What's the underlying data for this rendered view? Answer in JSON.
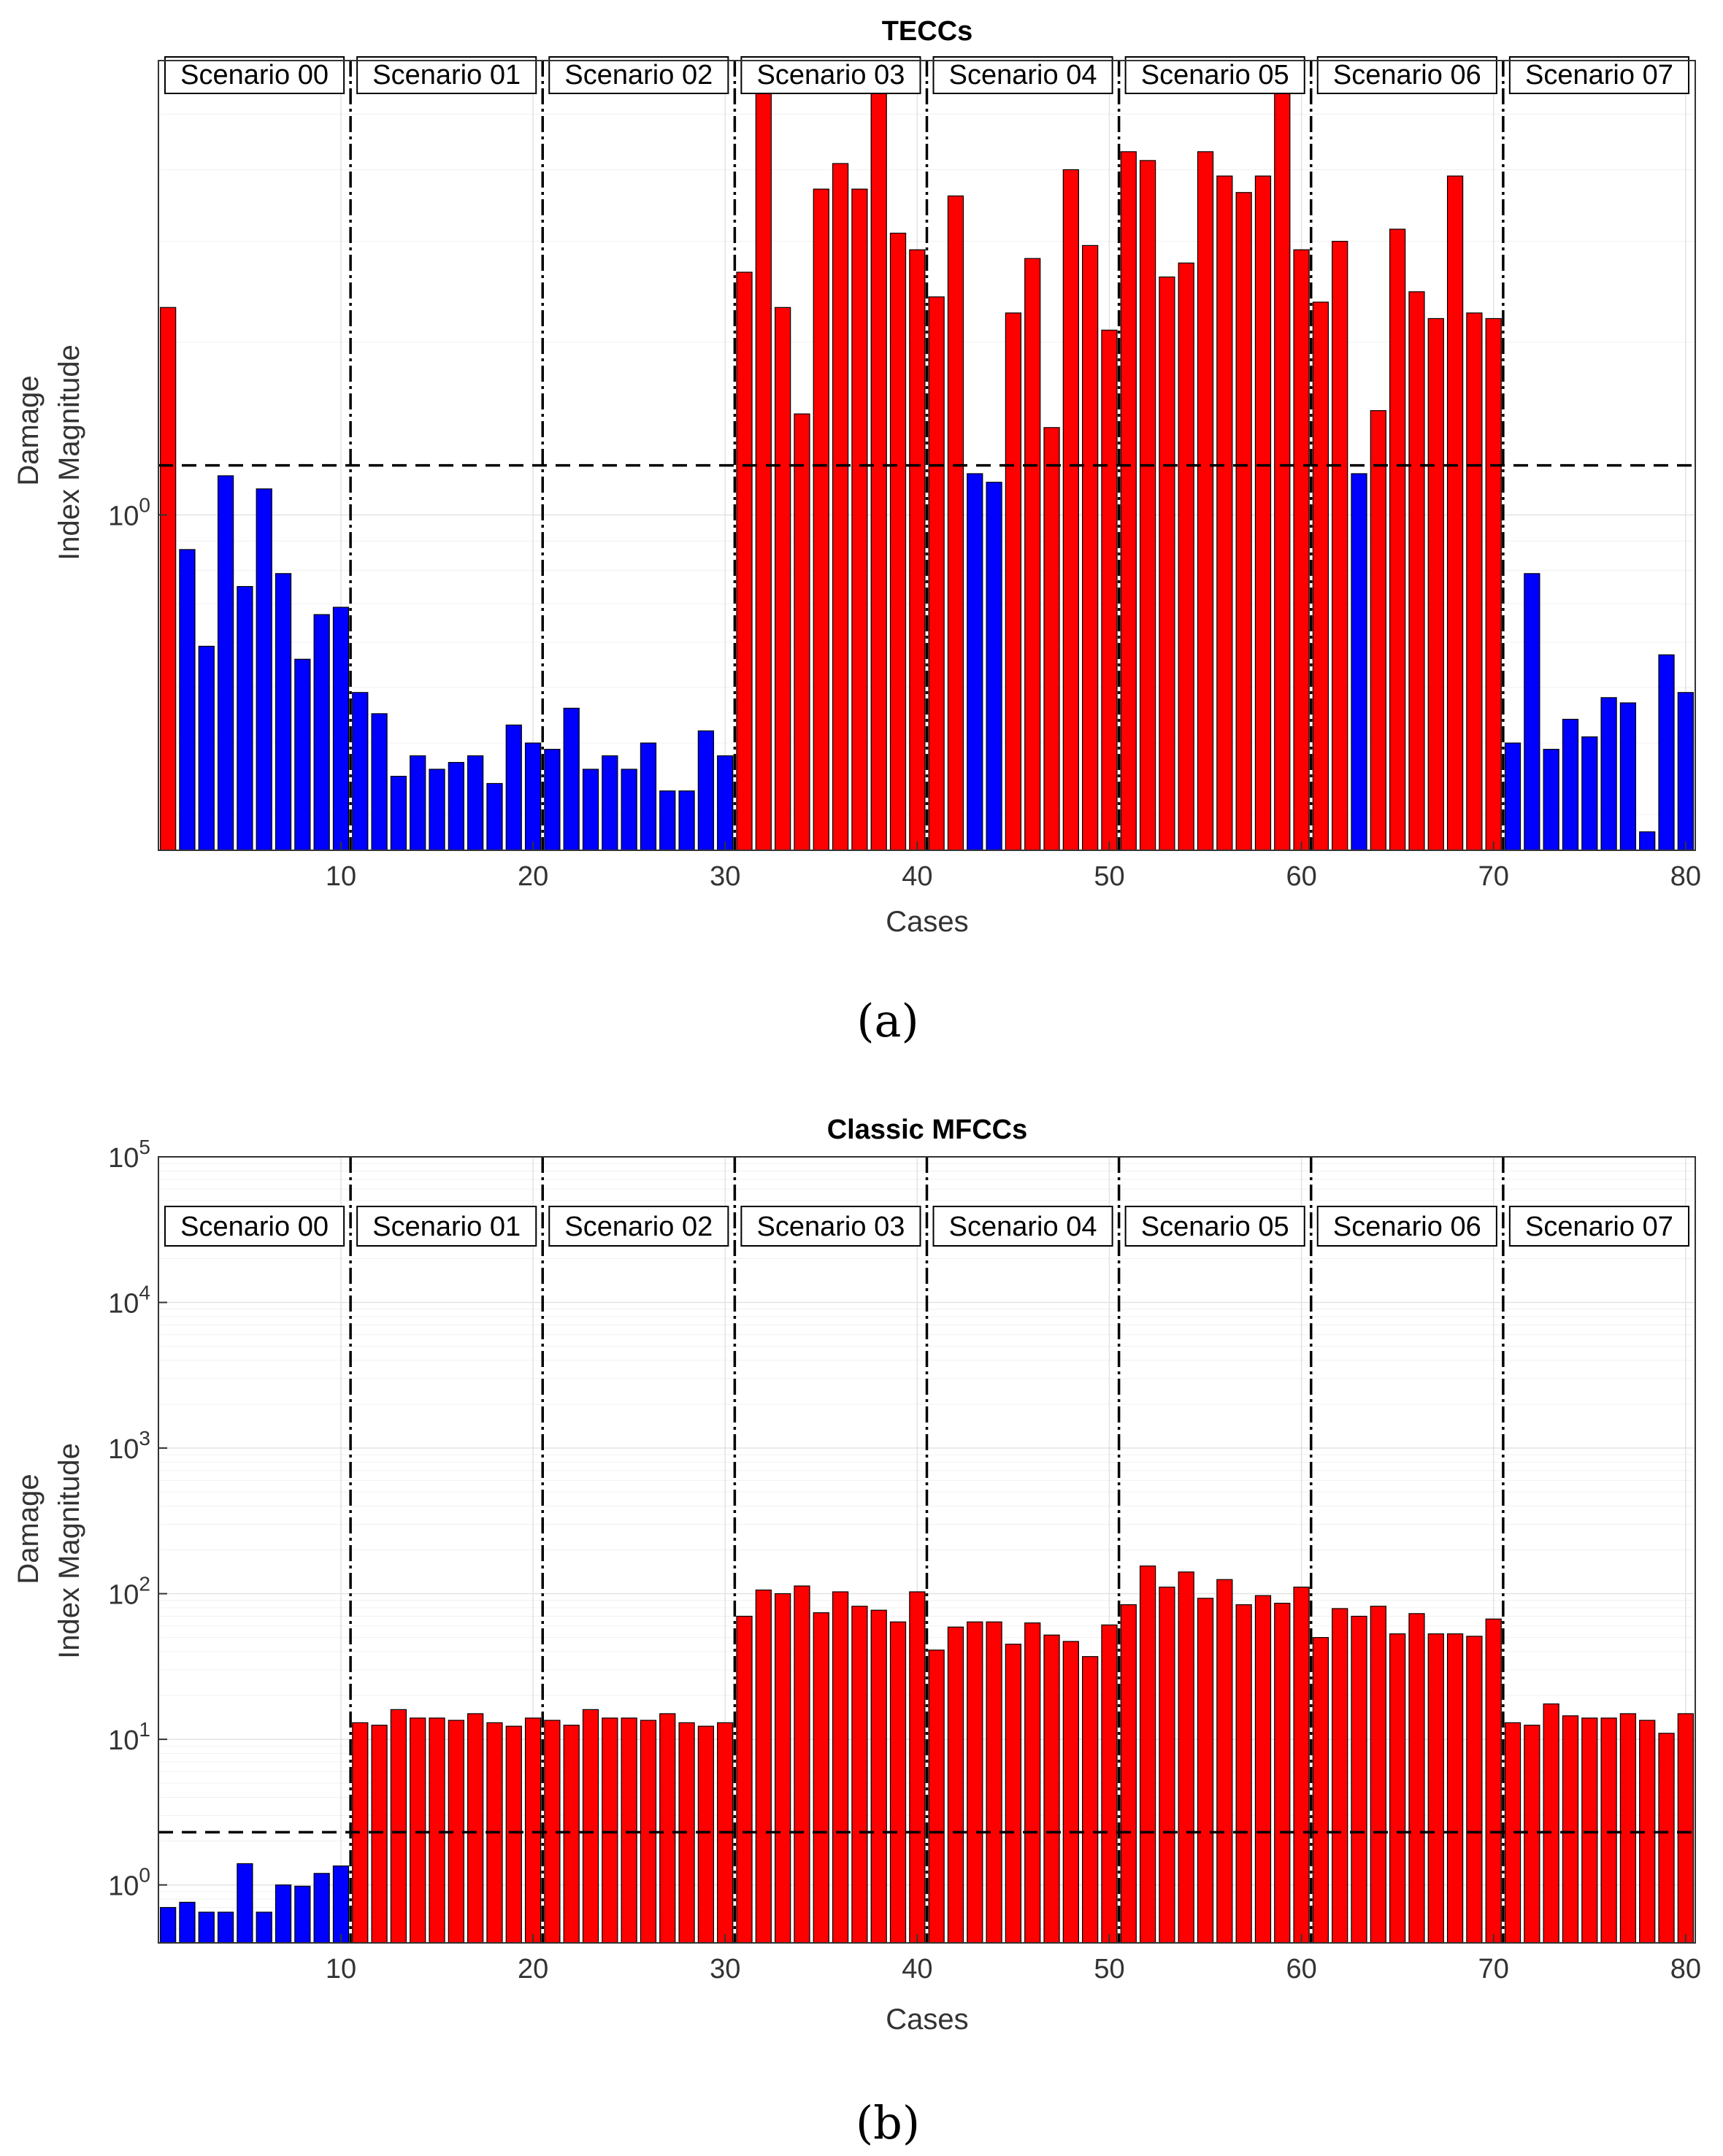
{
  "colors": {
    "above": "#ff0000",
    "below": "#0000ff",
    "bar_edge": "#000000"
  },
  "chart_data": [
    {
      "id": "a",
      "type": "bar",
      "yscale": "log",
      "title": "TECCs",
      "xlabel": "Cases",
      "ylabel_line1": "Damage",
      "ylabel_line2": "Index Magnitude",
      "panel_label": "(a)",
      "xlim": [
        0.5,
        80.5
      ],
      "ylim": [
        0.26,
        6.2
      ],
      "xticks": [
        10,
        20,
        30,
        40,
        50,
        60,
        70,
        80
      ],
      "ytick_values": [
        1
      ],
      "ytick_labels": [
        {
          "base": "10",
          "exp": "0"
        }
      ],
      "threshold": 1.22,
      "scenario_separators": [
        10.5,
        20.5,
        30.5,
        40.5,
        50.5,
        60.5,
        70.5
      ],
      "scenarios": [
        "Scenario 00",
        "Scenario 01",
        "Scenario 02",
        "Scenario 03",
        "Scenario 04",
        "Scenario 05",
        "Scenario 06",
        "Scenario 07"
      ],
      "x": [
        1,
        2,
        3,
        4,
        5,
        6,
        7,
        8,
        9,
        10,
        11,
        12,
        13,
        14,
        15,
        16,
        17,
        18,
        19,
        20,
        21,
        22,
        23,
        24,
        25,
        26,
        27,
        28,
        29,
        30,
        31,
        32,
        33,
        34,
        35,
        36,
        37,
        38,
        39,
        40,
        41,
        42,
        43,
        44,
        45,
        46,
        47,
        48,
        49,
        50,
        51,
        52,
        53,
        54,
        55,
        56,
        57,
        58,
        59,
        60,
        61,
        62,
        63,
        64,
        65,
        66,
        67,
        68,
        69,
        70,
        71,
        72,
        73,
        74,
        75,
        76,
        77,
        78,
        79,
        80
      ],
      "values": [
        2.3,
        0.87,
        0.59,
        1.17,
        0.75,
        1.11,
        0.79,
        0.56,
        0.67,
        0.69,
        0.49,
        0.45,
        0.35,
        0.38,
        0.36,
        0.37,
        0.38,
        0.34,
        0.43,
        0.4,
        0.39,
        0.46,
        0.36,
        0.38,
        0.36,
        0.4,
        0.33,
        0.33,
        0.42,
        0.38,
        2.65,
        5.6,
        2.3,
        1.5,
        3.7,
        4.1,
        3.7,
        5.8,
        3.1,
        2.9,
        2.4,
        3.6,
        1.18,
        1.14,
        2.25,
        2.8,
        1.42,
        4.0,
        2.95,
        2.1,
        4.3,
        4.15,
        2.6,
        2.75,
        4.3,
        3.9,
        3.65,
        3.9,
        5.5,
        2.9,
        2.35,
        3.0,
        1.18,
        1.52,
        3.15,
        2.45,
        2.2,
        3.9,
        2.25,
        2.2,
        0.4,
        0.79,
        0.39,
        0.44,
        0.41,
        0.48,
        0.47,
        0.28,
        0.57,
        0.49
      ]
    },
    {
      "id": "b",
      "type": "bar",
      "yscale": "log",
      "title": "Classic MFCCs",
      "xlabel": "Cases",
      "ylabel_line1": "Damage",
      "ylabel_line2": "Index Magnitude",
      "panel_label": "(b)",
      "xlim": [
        0.5,
        80.5
      ],
      "ylim": [
        0.4,
        100000
      ],
      "xticks": [
        10,
        20,
        30,
        40,
        50,
        60,
        70,
        80
      ],
      "ytick_values": [
        1,
        10,
        100,
        1000,
        10000,
        100000
      ],
      "ytick_labels": [
        {
          "base": "10",
          "exp": "0"
        },
        {
          "base": "10",
          "exp": "1"
        },
        {
          "base": "10",
          "exp": "2"
        },
        {
          "base": "10",
          "exp": "3"
        },
        {
          "base": "10",
          "exp": "4"
        },
        {
          "base": "10",
          "exp": "5"
        }
      ],
      "threshold": 2.3,
      "scenario_separators": [
        10.5,
        20.5,
        30.5,
        40.5,
        50.5,
        60.5,
        70.5
      ],
      "scenarios": [
        "Scenario 00",
        "Scenario 01",
        "Scenario 02",
        "Scenario 03",
        "Scenario 04",
        "Scenario 05",
        "Scenario 06",
        "Scenario 07"
      ],
      "x": [
        1,
        2,
        3,
        4,
        5,
        6,
        7,
        8,
        9,
        10,
        11,
        12,
        13,
        14,
        15,
        16,
        17,
        18,
        19,
        20,
        21,
        22,
        23,
        24,
        25,
        26,
        27,
        28,
        29,
        30,
        31,
        32,
        33,
        34,
        35,
        36,
        37,
        38,
        39,
        40,
        41,
        42,
        43,
        44,
        45,
        46,
        47,
        48,
        49,
        50,
        51,
        52,
        53,
        54,
        55,
        56,
        57,
        58,
        59,
        60,
        61,
        62,
        63,
        64,
        65,
        66,
        67,
        68,
        69,
        70,
        71,
        72,
        73,
        74,
        75,
        76,
        77,
        78,
        79,
        80
      ],
      "values": [
        0.7,
        0.76,
        0.65,
        0.65,
        1.4,
        0.65,
        1.0,
        0.98,
        1.2,
        1.35,
        13,
        12.5,
        16,
        14,
        14,
        13.5,
        15,
        13,
        12.3,
        14,
        13.5,
        12.5,
        16,
        14,
        14,
        13.5,
        15,
        13,
        12.3,
        13,
        70,
        106,
        100,
        113,
        74,
        103,
        82,
        77,
        64,
        103,
        41,
        59,
        64,
        64,
        45,
        63,
        52,
        47,
        37,
        61,
        84,
        155,
        111,
        141,
        93,
        125,
        84,
        97,
        86,
        111,
        50,
        79,
        70,
        82,
        53,
        73,
        53,
        53,
        51,
        67,
        13,
        12.5,
        17.5,
        14.5,
        14,
        14,
        15,
        13.5,
        11,
        15
      ]
    }
  ]
}
